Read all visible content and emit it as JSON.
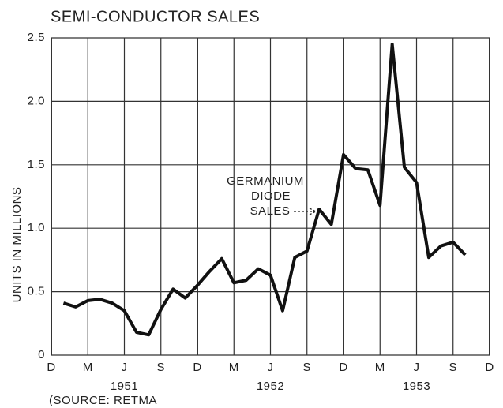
{
  "chart_data": {
    "type": "line",
    "title": "SEMI-CONDUCTOR SALES",
    "y_label": "UNITS IN MILLIONS",
    "annotation": [
      "GERMANIUM",
      "DIODE",
      "SALES"
    ],
    "source": "(SOURCE: RETMA",
    "year_labels": [
      "1951",
      "1952",
      "1953"
    ],
    "x": [
      1,
      2,
      3,
      4,
      5,
      6,
      7,
      8,
      9,
      10,
      11,
      12,
      13,
      14,
      15,
      16,
      17,
      18,
      19,
      20,
      21,
      22,
      23,
      24,
      25,
      26,
      27,
      28,
      29,
      30,
      31,
      32,
      33,
      34
    ],
    "values": [
      0.41,
      0.38,
      0.43,
      0.44,
      0.41,
      0.35,
      0.18,
      0.16,
      0.36,
      0.52,
      0.45,
      0.55,
      0.66,
      0.76,
      0.57,
      0.59,
      0.68,
      0.63,
      0.35,
      0.77,
      0.82,
      1.15,
      1.03,
      1.58,
      1.47,
      1.46,
      1.18,
      2.45,
      1.48,
      1.36,
      0.77,
      0.86,
      0.89,
      0.79
    ],
    "color": "#111111",
    "xlim": [
      0,
      36
    ],
    "xticks": [
      {
        "value": 0,
        "label": "D"
      },
      {
        "value": 3,
        "label": "M"
      },
      {
        "value": 6,
        "label": "J"
      },
      {
        "value": 9,
        "label": "S"
      },
      {
        "value": 12,
        "label": "D"
      },
      {
        "value": 15,
        "label": "M"
      },
      {
        "value": 18,
        "label": "J"
      },
      {
        "value": 21,
        "label": "S"
      },
      {
        "value": 24,
        "label": "D"
      },
      {
        "value": 27,
        "label": "M"
      },
      {
        "value": 30,
        "label": "J"
      },
      {
        "value": 33,
        "label": "S"
      },
      {
        "value": 36,
        "label": "D"
      }
    ],
    "ylim": [
      0,
      2.5
    ],
    "yticks": [
      0,
      0.5,
      {
        "value": 1,
        "label": "1.0"
      },
      1.5,
      {
        "value": 2,
        "label": "2.0"
      },
      2.5
    ],
    "grid": true
  }
}
